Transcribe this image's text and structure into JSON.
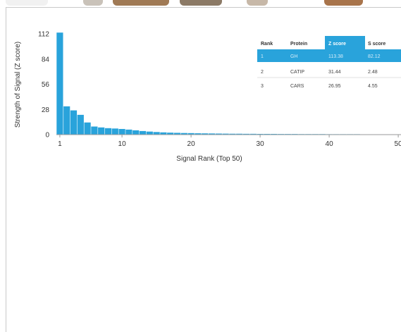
{
  "colors": {
    "bar": "#29a3db",
    "axis": "#999999",
    "header_highlight": "#29a3db",
    "frame": "#c9c9c9"
  },
  "chart_data": {
    "type": "bar",
    "ylabel": "Strength of Signal (Z score)",
    "xlabel": "Signal Rank (Top 50)",
    "ylim": [
      0,
      112
    ],
    "xlim": [
      0.5,
      50.5
    ],
    "yticks": [
      0,
      28,
      56,
      84,
      112
    ],
    "xticks": [
      1,
      10,
      20,
      30,
      40,
      50
    ],
    "grid": false,
    "categories": [
      1,
      2,
      3,
      4,
      5,
      6,
      7,
      8,
      9,
      10,
      11,
      12,
      13,
      14,
      15,
      16,
      17,
      18,
      19,
      20,
      21,
      22,
      23,
      24,
      25,
      26,
      27,
      28,
      29,
      30,
      31,
      32,
      33,
      34,
      35,
      36,
      37,
      38,
      39,
      40,
      41,
      42,
      43,
      44,
      45,
      46,
      47,
      48,
      49,
      50
    ],
    "values": [
      113.38,
      31.44,
      26.95,
      22.0,
      13.5,
      9.0,
      8.0,
      7.2,
      6.8,
      6.3,
      5.6,
      4.8,
      4.0,
      3.4,
      2.9,
      2.5,
      2.2,
      2.0,
      1.8,
      1.7,
      1.5,
      1.4,
      1.3,
      1.2,
      1.1,
      1.0,
      1.0,
      0.9,
      0.9,
      0.8,
      0.8,
      0.8,
      0.7,
      0.7,
      0.7,
      0.6,
      0.6,
      0.6,
      0.6,
      0.5,
      0.5,
      0.5,
      0.5,
      0.5,
      0.4,
      0.4,
      0.4,
      0.4,
      0.4,
      0.4
    ]
  },
  "table": {
    "headers": [
      "Rank",
      "Protein",
      "Z score",
      "S score"
    ],
    "rows": [
      [
        "1",
        "GH",
        "113.38",
        "82.12"
      ],
      [
        "2",
        "CATIP",
        "31.44",
        "2.48"
      ],
      [
        "3",
        "CARS",
        "26.95",
        "4.55"
      ]
    ]
  }
}
